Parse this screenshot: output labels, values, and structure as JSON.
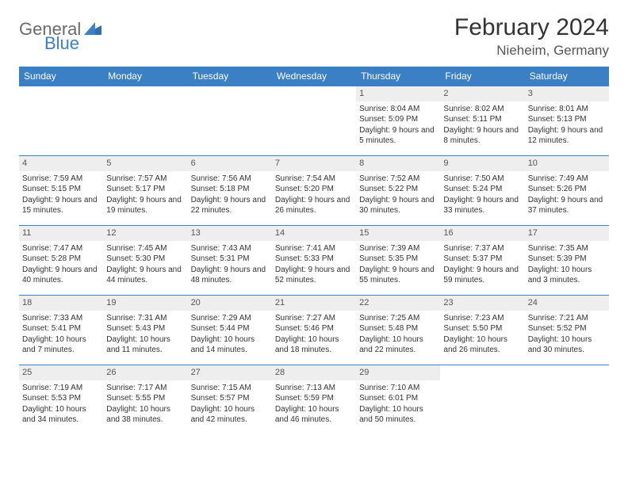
{
  "logo": {
    "general": "General",
    "blue": "Blue"
  },
  "title": "February 2024",
  "location": "Nieheim, Germany",
  "colors": {
    "header_bg": "#3b7fc4",
    "header_text": "#ffffff",
    "daynum_bg": "#eeeeee",
    "border": "#3b7fc4",
    "text": "#333333"
  },
  "day_headers": [
    "Sunday",
    "Monday",
    "Tuesday",
    "Wednesday",
    "Thursday",
    "Friday",
    "Saturday"
  ],
  "weeks": [
    [
      null,
      null,
      null,
      null,
      {
        "n": "1",
        "sr": "Sunrise: 8:04 AM",
        "ss": "Sunset: 5:09 PM",
        "dl": "Daylight: 9 hours and 5 minutes."
      },
      {
        "n": "2",
        "sr": "Sunrise: 8:02 AM",
        "ss": "Sunset: 5:11 PM",
        "dl": "Daylight: 9 hours and 8 minutes."
      },
      {
        "n": "3",
        "sr": "Sunrise: 8:01 AM",
        "ss": "Sunset: 5:13 PM",
        "dl": "Daylight: 9 hours and 12 minutes."
      }
    ],
    [
      {
        "n": "4",
        "sr": "Sunrise: 7:59 AM",
        "ss": "Sunset: 5:15 PM",
        "dl": "Daylight: 9 hours and 15 minutes."
      },
      {
        "n": "5",
        "sr": "Sunrise: 7:57 AM",
        "ss": "Sunset: 5:17 PM",
        "dl": "Daylight: 9 hours and 19 minutes."
      },
      {
        "n": "6",
        "sr": "Sunrise: 7:56 AM",
        "ss": "Sunset: 5:18 PM",
        "dl": "Daylight: 9 hours and 22 minutes."
      },
      {
        "n": "7",
        "sr": "Sunrise: 7:54 AM",
        "ss": "Sunset: 5:20 PM",
        "dl": "Daylight: 9 hours and 26 minutes."
      },
      {
        "n": "8",
        "sr": "Sunrise: 7:52 AM",
        "ss": "Sunset: 5:22 PM",
        "dl": "Daylight: 9 hours and 30 minutes."
      },
      {
        "n": "9",
        "sr": "Sunrise: 7:50 AM",
        "ss": "Sunset: 5:24 PM",
        "dl": "Daylight: 9 hours and 33 minutes."
      },
      {
        "n": "10",
        "sr": "Sunrise: 7:49 AM",
        "ss": "Sunset: 5:26 PM",
        "dl": "Daylight: 9 hours and 37 minutes."
      }
    ],
    [
      {
        "n": "11",
        "sr": "Sunrise: 7:47 AM",
        "ss": "Sunset: 5:28 PM",
        "dl": "Daylight: 9 hours and 40 minutes."
      },
      {
        "n": "12",
        "sr": "Sunrise: 7:45 AM",
        "ss": "Sunset: 5:30 PM",
        "dl": "Daylight: 9 hours and 44 minutes."
      },
      {
        "n": "13",
        "sr": "Sunrise: 7:43 AM",
        "ss": "Sunset: 5:31 PM",
        "dl": "Daylight: 9 hours and 48 minutes."
      },
      {
        "n": "14",
        "sr": "Sunrise: 7:41 AM",
        "ss": "Sunset: 5:33 PM",
        "dl": "Daylight: 9 hours and 52 minutes."
      },
      {
        "n": "15",
        "sr": "Sunrise: 7:39 AM",
        "ss": "Sunset: 5:35 PM",
        "dl": "Daylight: 9 hours and 55 minutes."
      },
      {
        "n": "16",
        "sr": "Sunrise: 7:37 AM",
        "ss": "Sunset: 5:37 PM",
        "dl": "Daylight: 9 hours and 59 minutes."
      },
      {
        "n": "17",
        "sr": "Sunrise: 7:35 AM",
        "ss": "Sunset: 5:39 PM",
        "dl": "Daylight: 10 hours and 3 minutes."
      }
    ],
    [
      {
        "n": "18",
        "sr": "Sunrise: 7:33 AM",
        "ss": "Sunset: 5:41 PM",
        "dl": "Daylight: 10 hours and 7 minutes."
      },
      {
        "n": "19",
        "sr": "Sunrise: 7:31 AM",
        "ss": "Sunset: 5:43 PM",
        "dl": "Daylight: 10 hours and 11 minutes."
      },
      {
        "n": "20",
        "sr": "Sunrise: 7:29 AM",
        "ss": "Sunset: 5:44 PM",
        "dl": "Daylight: 10 hours and 14 minutes."
      },
      {
        "n": "21",
        "sr": "Sunrise: 7:27 AM",
        "ss": "Sunset: 5:46 PM",
        "dl": "Daylight: 10 hours and 18 minutes."
      },
      {
        "n": "22",
        "sr": "Sunrise: 7:25 AM",
        "ss": "Sunset: 5:48 PM",
        "dl": "Daylight: 10 hours and 22 minutes."
      },
      {
        "n": "23",
        "sr": "Sunrise: 7:23 AM",
        "ss": "Sunset: 5:50 PM",
        "dl": "Daylight: 10 hours and 26 minutes."
      },
      {
        "n": "24",
        "sr": "Sunrise: 7:21 AM",
        "ss": "Sunset: 5:52 PM",
        "dl": "Daylight: 10 hours and 30 minutes."
      }
    ],
    [
      {
        "n": "25",
        "sr": "Sunrise: 7:19 AM",
        "ss": "Sunset: 5:53 PM",
        "dl": "Daylight: 10 hours and 34 minutes."
      },
      {
        "n": "26",
        "sr": "Sunrise: 7:17 AM",
        "ss": "Sunset: 5:55 PM",
        "dl": "Daylight: 10 hours and 38 minutes."
      },
      {
        "n": "27",
        "sr": "Sunrise: 7:15 AM",
        "ss": "Sunset: 5:57 PM",
        "dl": "Daylight: 10 hours and 42 minutes."
      },
      {
        "n": "28",
        "sr": "Sunrise: 7:13 AM",
        "ss": "Sunset: 5:59 PM",
        "dl": "Daylight: 10 hours and 46 minutes."
      },
      {
        "n": "29",
        "sr": "Sunrise: 7:10 AM",
        "ss": "Sunset: 6:01 PM",
        "dl": "Daylight: 10 hours and 50 minutes."
      },
      null,
      null
    ]
  ]
}
